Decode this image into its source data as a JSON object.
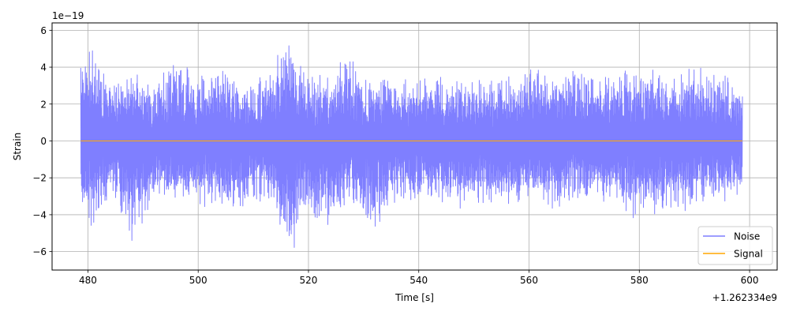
{
  "chart_data": {
    "type": "line",
    "xlabel": "Time [s]",
    "ylabel": "Strain",
    "x_offset_label": "+1.262334e9",
    "y_scale_label": "1e−19",
    "xlim": [
      473.5,
      605.0
    ],
    "ylim": [
      -7.0,
      6.4
    ],
    "x_ticks": [
      480,
      500,
      520,
      540,
      560,
      580,
      600
    ],
    "x_tick_labels": [
      "480",
      "500",
      "520",
      "540",
      "560",
      "580",
      "600"
    ],
    "y_ticks": [
      -6,
      -4,
      -2,
      0,
      2,
      4,
      6
    ],
    "y_tick_labels": [
      "−6",
      "−4",
      "−2",
      "0",
      "2",
      "4",
      "6"
    ],
    "grid": true,
    "legend_position": "bottom-right",
    "series": [
      {
        "name": "Noise",
        "color": "#7f7fff",
        "x_range": [
          478.7,
          598.7
        ],
        "envelope_upper": [
          [
            478.7,
            4.1
          ],
          [
            480.4,
            5.75
          ],
          [
            484.0,
            3.1
          ],
          [
            488.0,
            3.7
          ],
          [
            492.0,
            3.3
          ],
          [
            496.3,
            4.7
          ],
          [
            500.5,
            3.6
          ],
          [
            504.5,
            4.4
          ],
          [
            508.0,
            3.4
          ],
          [
            512.0,
            3.6
          ],
          [
            516.6,
            5.6
          ],
          [
            520.0,
            4.0
          ],
          [
            524.0,
            3.5
          ],
          [
            526.9,
            5.2
          ],
          [
            530.0,
            3.4
          ],
          [
            534.0,
            3.4
          ],
          [
            538.0,
            3.5
          ],
          [
            542.0,
            3.6
          ],
          [
            546.0,
            3.3
          ],
          [
            550.0,
            3.3
          ],
          [
            554.0,
            3.7
          ],
          [
            558.0,
            3.6
          ],
          [
            559.7,
            4.7
          ],
          [
            564.0,
            3.5
          ],
          [
            568.0,
            4.0
          ],
          [
            572.0,
            3.8
          ],
          [
            576.0,
            3.9
          ],
          [
            579.7,
            4.5
          ],
          [
            584.0,
            3.7
          ],
          [
            588.0,
            4.0
          ],
          [
            592.0,
            4.4
          ],
          [
            596.0,
            3.7
          ],
          [
            598.7,
            2.5
          ]
        ],
        "envelope_lower": [
          [
            478.7,
            -3.5
          ],
          [
            480.5,
            -4.8
          ],
          [
            484.0,
            -3.0
          ],
          [
            488.0,
            -5.75
          ],
          [
            492.0,
            -3.3
          ],
          [
            496.0,
            -3.1
          ],
          [
            500.5,
            -3.6
          ],
          [
            504.0,
            -3.6
          ],
          [
            508.0,
            -3.8
          ],
          [
            512.0,
            -3.3
          ],
          [
            516.6,
            -6.4
          ],
          [
            520.0,
            -3.9
          ],
          [
            524.0,
            -5.1
          ],
          [
            527.0,
            -3.5
          ],
          [
            532.0,
            -5.0
          ],
          [
            536.0,
            -3.3
          ],
          [
            540.0,
            -3.2
          ],
          [
            544.0,
            -3.4
          ],
          [
            548.0,
            -3.7
          ],
          [
            552.0,
            -3.5
          ],
          [
            556.0,
            -3.8
          ],
          [
            560.0,
            -3.3
          ],
          [
            564.0,
            -3.7
          ],
          [
            568.0,
            -3.6
          ],
          [
            572.0,
            -3.2
          ],
          [
            576.0,
            -3.7
          ],
          [
            580.0,
            -4.4
          ],
          [
            584.0,
            -3.9
          ],
          [
            588.0,
            -3.8
          ],
          [
            592.0,
            -3.6
          ],
          [
            596.0,
            -3.3
          ],
          [
            598.7,
            -3.0
          ]
        ]
      },
      {
        "name": "Signal",
        "color": "#ffa500",
        "x": [
          478.7,
          598.7
        ],
        "y": [
          0,
          0
        ]
      }
    ]
  }
}
